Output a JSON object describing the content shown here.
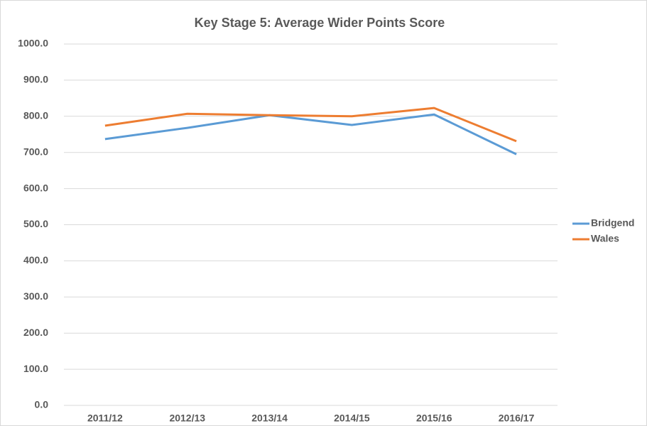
{
  "chart_data": {
    "type": "line",
    "title": "Key Stage 5: Average Wider Points Score",
    "categories": [
      "2011/12",
      "2012/13",
      "2013/14",
      "2014/15",
      "2015/16",
      "2016/17"
    ],
    "series": [
      {
        "name": "Bridgend",
        "color": "#5b9bd5",
        "values": [
          737,
          768,
          803,
          776,
          805,
          695
        ]
      },
      {
        "name": "Wales",
        "color": "#ed7d31",
        "values": [
          774,
          807,
          803,
          800,
          823,
          731
        ]
      }
    ],
    "ylim": [
      0,
      1000
    ],
    "yticks": [
      {
        "value": 0,
        "label": "0.0"
      },
      {
        "value": 100,
        "label": "100.0"
      },
      {
        "value": 200,
        "label": "200.0"
      },
      {
        "value": 300,
        "label": "300.0"
      },
      {
        "value": 400,
        "label": "400.0"
      },
      {
        "value": 500,
        "label": "500.0"
      },
      {
        "value": 600,
        "label": "600.0"
      },
      {
        "value": 700,
        "label": "700.0"
      },
      {
        "value": 800,
        "label": "800.0"
      },
      {
        "value": 900,
        "label": "900.0"
      },
      {
        "value": 1000,
        "label": "1000.0"
      }
    ],
    "grid": true,
    "legend": "right"
  }
}
